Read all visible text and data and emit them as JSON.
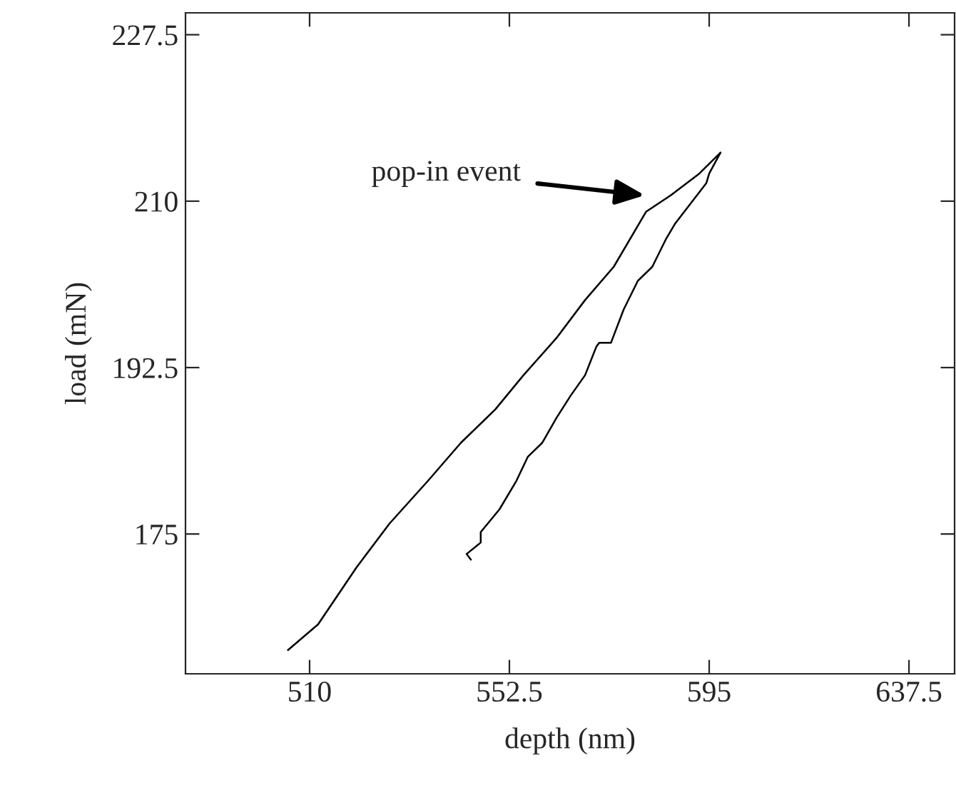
{
  "chart_data": {
    "type": "line",
    "xlabel": "depth (nm)",
    "ylabel": "load (mN)",
    "xlim": [
      483.6,
      647.2
    ],
    "ylim": [
      160.3,
      229.8
    ],
    "xticks": [
      510,
      552.5,
      595,
      637.5
    ],
    "yticks": [
      175,
      192.5,
      210,
      227.5
    ],
    "grid": false,
    "legend": false,
    "marker": "none",
    "line_style": "solid",
    "annotations": [
      "pop-in event"
    ],
    "series": [
      {
        "color": "#000000",
        "x": [
          505.4,
          511.8,
          520.0,
          527.0,
          535.2,
          542.2,
          549.5,
          555.5,
          562.5,
          568.6,
          574.7,
          581.6,
          586.8,
          592.9,
          597.4
        ],
        "values": [
          162.8,
          165.5,
          171.5,
          176.1,
          180.6,
          184.6,
          188.1,
          191.7,
          195.6,
          199.6,
          203.1,
          208.9,
          210.6,
          212.9,
          215.1
        ]
      },
      {
        "color": "#000000",
        "x": [
          597.4,
          595.0,
          594.4,
          587.7,
          585.9,
          582.9,
          579.8,
          576.8,
          574.1,
          571.6,
          571.0,
          568.6,
          565.6,
          562.5,
          559.5,
          556.4,
          554.0,
          550.4,
          546.4,
          546.4,
          543.4,
          544.3
        ],
        "values": [
          215.1,
          212.9,
          211.9,
          207.6,
          206.1,
          203.1,
          201.6,
          198.6,
          195.1,
          195.1,
          194.7,
          191.7,
          189.6,
          187.2,
          184.6,
          183.1,
          180.6,
          177.6,
          175.2,
          174.1,
          172.9,
          172.3
        ]
      }
    ]
  }
}
